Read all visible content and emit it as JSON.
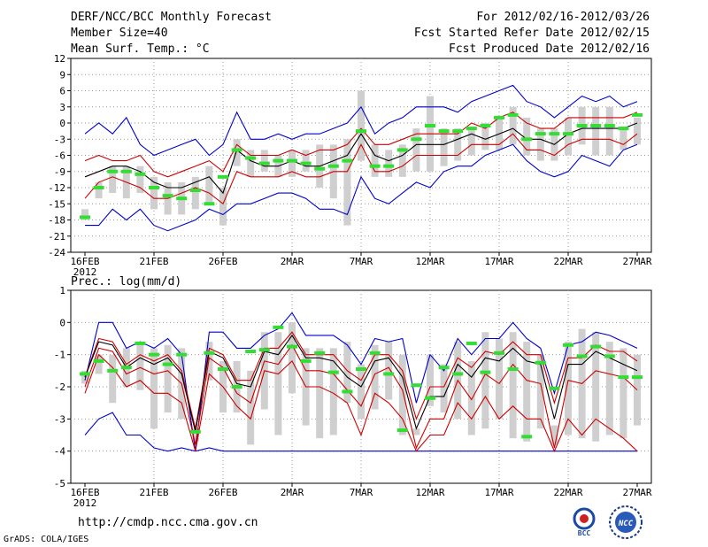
{
  "header": {
    "title": "DERF/NCC/BCC Monthly Forecast",
    "member_size": "Member Size=40",
    "variable": "Mean Surf. Temp.: °C",
    "period": "For 2012/02/16-2012/03/26",
    "started": "Fcst Started Refer Date 2012/02/15",
    "produced": "Fcst Produced Date 2012/02/16"
  },
  "precip_label": "Prec.: log(mm/d)",
  "footer": {
    "url": "http://cmdp.ncc.cma.gov.cn",
    "grads": "GrADS: COLA/IGES",
    "logo_bcc_label": "BCC",
    "logo_ncc_label": "NCC"
  },
  "colors": {
    "max_min": "#0000cc",
    "spread": "#cc0000",
    "mean": "#000000",
    "box": "#cfcfcf",
    "observed": "#33dd33",
    "grid": "#999999"
  },
  "chart_data": [
    {
      "type": "line",
      "title": "Mean Surf. Temp.: °C",
      "x_tick_labels": [
        "16FEB",
        "21FEB",
        "26FEB",
        "2MAR",
        "7MAR",
        "12MAR",
        "17MAR",
        "22MAR",
        "27MAR"
      ],
      "x_tick_index": [
        0,
        5,
        10,
        15,
        20,
        25,
        30,
        35,
        40
      ],
      "year_label": "2012",
      "ylim": [
        -24,
        12
      ],
      "y_ticks": [
        -24,
        -21,
        -18,
        -15,
        -12,
        -9,
        -6,
        -3,
        0,
        3,
        6,
        9,
        12
      ],
      "series": [
        {
          "name": "max",
          "values": [
            -2,
            0,
            -2,
            1,
            -4,
            -6,
            -5,
            -4,
            -3,
            -6,
            -4,
            2,
            -3,
            -3,
            -2,
            -3,
            -2,
            -2,
            -1,
            0,
            3,
            -2,
            0,
            1,
            3,
            3,
            3,
            2,
            4,
            5,
            6,
            7,
            4,
            3,
            1,
            3,
            5,
            4,
            5,
            3,
            4
          ]
        },
        {
          "name": "upper",
          "values": [
            -7,
            -6,
            -7,
            -7,
            -6,
            -9,
            -10,
            -9,
            -8,
            -7,
            -9,
            -4,
            -6,
            -6,
            -6,
            -5,
            -6,
            -5,
            -5,
            -4,
            -1,
            -4,
            -4,
            -3,
            -2,
            -2,
            -2,
            -2,
            0,
            -1,
            1,
            2,
            0,
            -1,
            -1,
            1,
            1,
            1,
            1,
            1,
            2
          ]
        },
        {
          "name": "mean",
          "values": [
            -10,
            -9,
            -8,
            -8,
            -9,
            -11,
            -12,
            -12,
            -11,
            -10,
            -13,
            -5,
            -7,
            -8,
            -8,
            -7,
            -8,
            -8,
            -7,
            -6,
            -2,
            -6,
            -7,
            -6,
            -4,
            -4,
            -4,
            -3,
            -2,
            -3,
            -2,
            -1,
            -3,
            -3,
            -4,
            -2,
            -1,
            -1,
            -1,
            -1,
            0
          ]
        },
        {
          "name": "lower",
          "values": [
            -14,
            -11,
            -10,
            -11,
            -12,
            -14,
            -14,
            -13,
            -12,
            -13,
            -15,
            -9,
            -10,
            -10,
            -10,
            -9,
            -10,
            -10,
            -9,
            -9,
            -4,
            -9,
            -9,
            -8,
            -6,
            -6,
            -6,
            -6,
            -4,
            -4,
            -4,
            -2,
            -5,
            -5,
            -6,
            -4,
            -3,
            -3,
            -3,
            -4,
            -2
          ]
        },
        {
          "name": "min",
          "values": [
            -19,
            -19,
            -16,
            -18,
            -16,
            -19,
            -20,
            -19,
            -18,
            -16,
            -17,
            -15,
            -15,
            -14,
            -13,
            -13,
            -14,
            -16,
            -16,
            -17,
            -10,
            -14,
            -15,
            -13,
            -11,
            -12,
            -9,
            -8,
            -8,
            -6,
            -5,
            -4,
            -7,
            -9,
            -10,
            -9,
            -6,
            -7,
            -8,
            -5,
            -4
          ]
        },
        {
          "name": "box_top",
          "values": [
            -16,
            -11,
            -8,
            -8,
            -8,
            -10,
            -11,
            -11,
            -10,
            -8,
            -12,
            -3,
            -5,
            -5,
            -6,
            -5,
            -5,
            -4,
            -4,
            -3,
            6,
            -4,
            -5,
            -4,
            -1,
            5,
            -1,
            -1,
            -1,
            0,
            1,
            3,
            1,
            -1,
            -1,
            1,
            3,
            3,
            3,
            -1,
            1
          ]
        },
        {
          "name": "box_bottom",
          "values": [
            -18,
            -14,
            -13,
            -14,
            -13,
            -16,
            -17,
            -17,
            -16,
            -15,
            -19,
            -8,
            -10,
            -9,
            -10,
            -10,
            -9,
            -12,
            -14,
            -19,
            -7,
            -10,
            -10,
            -10,
            -9,
            -9,
            -8,
            -7,
            -6,
            -5,
            -5,
            -4,
            -6,
            -7,
            -7,
            -6,
            -4,
            -6,
            -6,
            -5,
            -4
          ]
        },
        {
          "name": "observed",
          "values": [
            -17.5,
            -12,
            -9,
            -9,
            -9.5,
            -12,
            -13.5,
            -14,
            -12.5,
            -15,
            -10,
            -5,
            -6.5,
            -7.5,
            -7,
            -7,
            -7.5,
            -8.5,
            -8,
            -7,
            -1.5,
            -8,
            -8,
            -5,
            -3,
            -0.5,
            -1.5,
            -1.5,
            -1,
            -0.5,
            1,
            1.5,
            -3,
            -2,
            -2,
            -2,
            -0.5,
            -0.5,
            -0.5,
            -1,
            1.5
          ]
        }
      ]
    },
    {
      "type": "line",
      "title": "Prec.: log(mm/d)",
      "x_tick_labels": [
        "16FEB",
        "21FEB",
        "26FEB",
        "2MAR",
        "7MAR",
        "12MAR",
        "17MAR",
        "22MAR",
        "27MAR"
      ],
      "x_tick_index": [
        0,
        5,
        10,
        15,
        20,
        25,
        30,
        35,
        40
      ],
      "year_label": "2012",
      "ylim": [
        -5,
        1
      ],
      "y_ticks": [
        -5,
        -4,
        -3,
        -2,
        -1,
        0,
        1
      ],
      "series": [
        {
          "name": "max",
          "values": [
            -1.8,
            0,
            0,
            -0.8,
            -0.6,
            -0.8,
            -0.5,
            -1,
            -4,
            -0.3,
            -0.3,
            -0.8,
            -0.8,
            -0.4,
            -0.2,
            0.3,
            -0.4,
            -0.4,
            -0.4,
            -0.7,
            -1.3,
            -0.5,
            -0.6,
            -0.5,
            -2.5,
            -1,
            -1.5,
            -0.5,
            -1,
            -0.5,
            -0.5,
            0,
            -0.5,
            -0.8,
            -2.2,
            -0.7,
            -0.6,
            -0.3,
            -0.4,
            -0.6,
            -0.8
          ]
        },
        {
          "name": "upper",
          "values": [
            -1.7,
            -0.5,
            -0.6,
            -1.3,
            -1,
            -1.2,
            -1,
            -1.5,
            -3.3,
            -0.8,
            -1,
            -1.8,
            -1.8,
            -0.8,
            -0.8,
            -0.3,
            -1,
            -1,
            -1,
            -1.5,
            -1.8,
            -1,
            -1,
            -1.5,
            -3,
            -2,
            -2,
            -1.1,
            -1.4,
            -0.9,
            -1,
            -0.6,
            -1,
            -1,
            -2.5,
            -1.1,
            -1.1,
            -0.7,
            -0.9,
            -0.9,
            -1.2
          ]
        },
        {
          "name": "mean",
          "values": [
            -1.7,
            -0.6,
            -0.7,
            -1.4,
            -1.1,
            -1.3,
            -1.1,
            -1.6,
            -3.4,
            -0.9,
            -1.1,
            -1.9,
            -2,
            -0.9,
            -1,
            -0.4,
            -1.1,
            -1.1,
            -1.2,
            -1.7,
            -2,
            -1.2,
            -1.1,
            -1.7,
            -3.3,
            -2.3,
            -2.3,
            -1.3,
            -1.7,
            -1.1,
            -1.2,
            -0.8,
            -1.2,
            -1.3,
            -3,
            -1.3,
            -1.3,
            -0.9,
            -1.1,
            -1.3,
            -1.5
          ]
        },
        {
          "name": "lower",
          "values": [
            -2,
            -0.8,
            -0.9,
            -1.6,
            -1.4,
            -1.6,
            -1.5,
            -1.9,
            -3.8,
            -1.1,
            -1.4,
            -2.2,
            -2.5,
            -1.2,
            -1.3,
            -0.7,
            -1.5,
            -1.5,
            -1.6,
            -2.1,
            -2.6,
            -1.6,
            -1.4,
            -2.1,
            -3.9,
            -3,
            -3,
            -1.8,
            -2.4,
            -1.6,
            -1.9,
            -1.3,
            -1.8,
            -1.9,
            -3.9,
            -1.8,
            -1.9,
            -1.5,
            -1.6,
            -1.7,
            -2.1
          ]
        },
        {
          "name": "min",
          "values": [
            -3.5,
            -3,
            -2.8,
            -3.5,
            -3.5,
            -3.9,
            -4,
            -3.9,
            -4,
            -3.9,
            -4,
            -4,
            -4,
            -4,
            -4,
            -4,
            -4,
            -4,
            -4,
            -4,
            -4,
            -4,
            -4,
            -4,
            -4,
            -4,
            -4,
            -4,
            -4,
            -4,
            -4,
            -4,
            -4,
            -4,
            -4,
            -4,
            -4,
            -4,
            -4,
            -4,
            -4
          ]
        },
        {
          "name": "low2",
          "values": [
            -2.2,
            -1,
            -1.4,
            -2,
            -1.8,
            -2.2,
            -2.2,
            -2.5,
            -4,
            -1.6,
            -2,
            -2.6,
            -3,
            -1.5,
            -1.6,
            -1.2,
            -2,
            -2,
            -2.2,
            -2.5,
            -3.5,
            -2.2,
            -2.5,
            -3,
            -4,
            -3.5,
            -3.5,
            -2.5,
            -3,
            -2.3,
            -3,
            -2.6,
            -3,
            -3,
            -4,
            -3,
            -3.5,
            -3,
            -3.3,
            -3.6,
            -4
          ]
        },
        {
          "name": "box_top",
          "values": [
            -1.5,
            -1,
            -1,
            -0.8,
            -0.6,
            -0.8,
            -0.7,
            -0.8,
            -3.3,
            -0.6,
            -1.2,
            -1.2,
            -1.5,
            -0.3,
            -0.3,
            0,
            -0.8,
            -0.8,
            -0.8,
            -0.6,
            -1.3,
            -0.7,
            -0.6,
            -1,
            -3.3,
            -1,
            -1.3,
            -0.6,
            -1.2,
            -0.3,
            -0.5,
            -0.3,
            -0.6,
            -1,
            -3.2,
            -0.6,
            -0.2,
            -0.3,
            -0.6,
            -0.8,
            -1
          ]
        },
        {
          "name": "box_bottom",
          "values": [
            -1.9,
            -1.6,
            -2.5,
            -2,
            -2.1,
            -3.3,
            -2.8,
            -3,
            -3.7,
            -1.8,
            -2.8,
            -2.8,
            -3.8,
            -2.7,
            -3.5,
            -2.2,
            -3.2,
            -3.6,
            -3.5,
            -2.5,
            -3,
            -2.7,
            -2.4,
            -3.5,
            -3.5,
            -2.6,
            -2.8,
            -3,
            -3.5,
            -3.3,
            -3,
            -3.6,
            -3.7,
            -3.3,
            -3.8,
            -3.5,
            -3.6,
            -3.7,
            -3.5,
            -3.6,
            -3.2
          ]
        },
        {
          "name": "observed",
          "values": [
            -1.6,
            -1.2,
            -1.5,
            -1.4,
            -0.65,
            -1,
            -1.3,
            -1,
            -3.4,
            -0.95,
            -1.45,
            -2,
            -0.9,
            -0.85,
            -0.15,
            -0.75,
            -1.2,
            -0.95,
            -1.55,
            -2.15,
            -1.45,
            -0.95,
            -1.6,
            -3.35,
            -1.95,
            -2.35,
            -1.4,
            -1.6,
            -0.65,
            -1.55,
            -0.95,
            -1.45,
            -3.55,
            -1.25,
            -2.05,
            -0.7,
            -1.05,
            -0.75,
            -1.05,
            -1.7,
            -1.7
          ]
        }
      ]
    }
  ]
}
